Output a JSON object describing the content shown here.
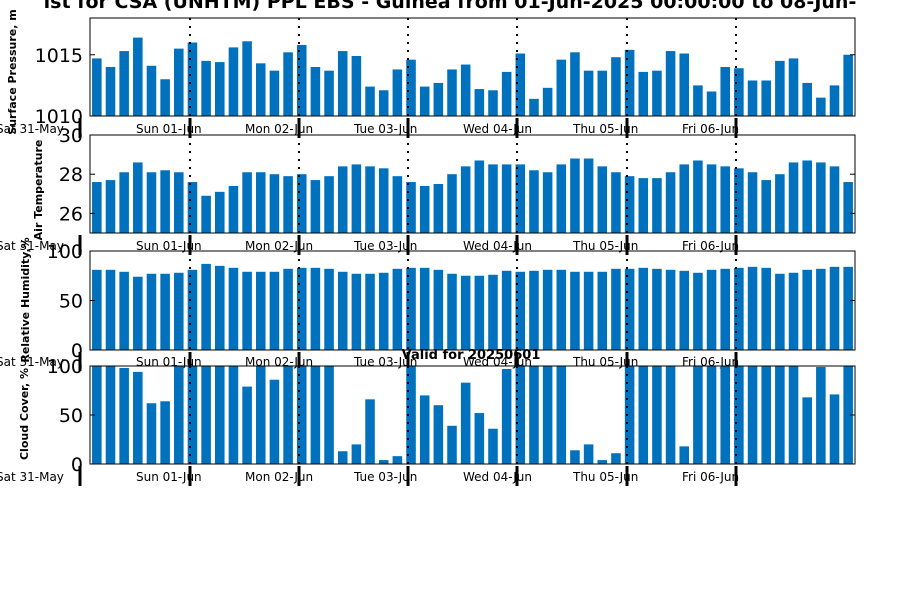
{
  "title": "ist for CSA (UNHTM) PPL EBS  - Guinea from 01-Jun-2025 00:00:00 to 08-Jun-",
  "subtitle": "Valid for 20250601",
  "colors": {
    "bar": "#0072bd",
    "axis": "#000000",
    "divider": "#000000"
  },
  "chart_data": [
    {
      "type": "bar",
      "ylabel": "Surface Pressure, m",
      "ylim": [
        1010,
        1018
      ],
      "yticks": [
        1010,
        1015
      ],
      "x_day_ticks": [
        "Sat 31-May",
        "Sun 01-Jun",
        "Mon 02-Jun",
        "Tue 03-Jun",
        "Wed 04-Jun",
        "Thu 05-Jun",
        "Fri 06-Jun"
      ],
      "values": [
        1014.7,
        1014.0,
        1015.3,
        1016.4,
        1014.1,
        1013.0,
        1015.5,
        1016.0,
        1014.5,
        1014.4,
        1015.6,
        1016.1,
        1014.3,
        1013.7,
        1015.2,
        1015.8,
        1014.0,
        1013.7,
        1015.3,
        1014.9,
        1012.4,
        1012.1,
        1013.8,
        1014.6,
        1012.4,
        1012.7,
        1013.8,
        1014.2,
        1012.2,
        1012.1,
        1013.6,
        1015.1,
        1011.4,
        1012.3,
        1014.6,
        1015.2,
        1013.7,
        1013.7,
        1014.8,
        1015.4,
        1013.6,
        1013.7,
        1015.3,
        1015.1,
        1012.5,
        1012.0,
        1014.0,
        1013.9,
        1012.9,
        1012.9,
        1014.5,
        1014.7,
        1012.7,
        1011.5,
        1012.5,
        1015.0
      ]
    },
    {
      "type": "bar",
      "ylabel": "Air Temperature",
      "ylim": [
        25,
        30
      ],
      "yticks": [
        26,
        28,
        30
      ],
      "x_day_ticks": [
        "Sat 31-May",
        "Sun 01-Jun",
        "Mon 02-Jun",
        "Tue 03-Jun",
        "Wed 04-Jun",
        "Thu 05-Jun",
        "Fri 06-Jun"
      ],
      "values": [
        27.6,
        27.7,
        28.1,
        28.6,
        28.1,
        28.2,
        28.1,
        27.6,
        26.9,
        27.1,
        27.4,
        28.1,
        28.1,
        28.0,
        27.9,
        28.0,
        27.7,
        27.9,
        28.4,
        28.5,
        28.4,
        28.3,
        27.9,
        27.6,
        27.4,
        27.5,
        28.0,
        28.4,
        28.7,
        28.5,
        28.5,
        28.5,
        28.2,
        28.1,
        28.5,
        28.8,
        28.8,
        28.4,
        28.1,
        27.9,
        27.8,
        27.8,
        28.1,
        28.5,
        28.7,
        28.5,
        28.4,
        28.3,
        28.1,
        27.7,
        28.0,
        28.6,
        28.7,
        28.6,
        28.4,
        27.6
      ]
    },
    {
      "type": "bar",
      "ylabel": "Relative Humidity,%",
      "ylim": [
        0,
        100
      ],
      "yticks": [
        0,
        50,
        100
      ],
      "x_day_ticks": [
        "Sat 31-May",
        "Sun 01-Jun",
        "Mon 02-Jun",
        "Tue 03-Jun",
        "Wed 04-Jun",
        "Thu 05-Jun",
        "Fri 06-Jun"
      ],
      "values": [
        81,
        81,
        79,
        74,
        77,
        77,
        78,
        81,
        87,
        85,
        83,
        79,
        79,
        79,
        82,
        83,
        83,
        82,
        79,
        77,
        77,
        78,
        82,
        83,
        83,
        81,
        77,
        75,
        75,
        76,
        80,
        79,
        80,
        81,
        81,
        79,
        79,
        79,
        82,
        82,
        83,
        82,
        81,
        80,
        78,
        81,
        82,
        83,
        84,
        83,
        77,
        78,
        81,
        82,
        84,
        84
      ]
    },
    {
      "type": "bar",
      "ylabel": "Cloud Cover, %",
      "ylim": [
        0,
        100
      ],
      "yticks": [
        0,
        50,
        100
      ],
      "x_day_ticks": [
        "Sat 31-May",
        "Sun 01-Jun",
        "Mon 02-Jun",
        "Tue 03-Jun",
        "Wed 04-Jun",
        "Thu 05-Jun",
        "Fri 06-Jun"
      ],
      "values": [
        100,
        100,
        98,
        94,
        62,
        64,
        100,
        100,
        100,
        100,
        100,
        79,
        100,
        86,
        100,
        100,
        100,
        100,
        13,
        20,
        66,
        4,
        8,
        100,
        70,
        60,
        39,
        83,
        52,
        36,
        97,
        100,
        100,
        100,
        100,
        14,
        20,
        4,
        11,
        100,
        100,
        100,
        100,
        18,
        100,
        100,
        100,
        100,
        100,
        100,
        100,
        100,
        68,
        99,
        71,
        100
      ]
    }
  ]
}
